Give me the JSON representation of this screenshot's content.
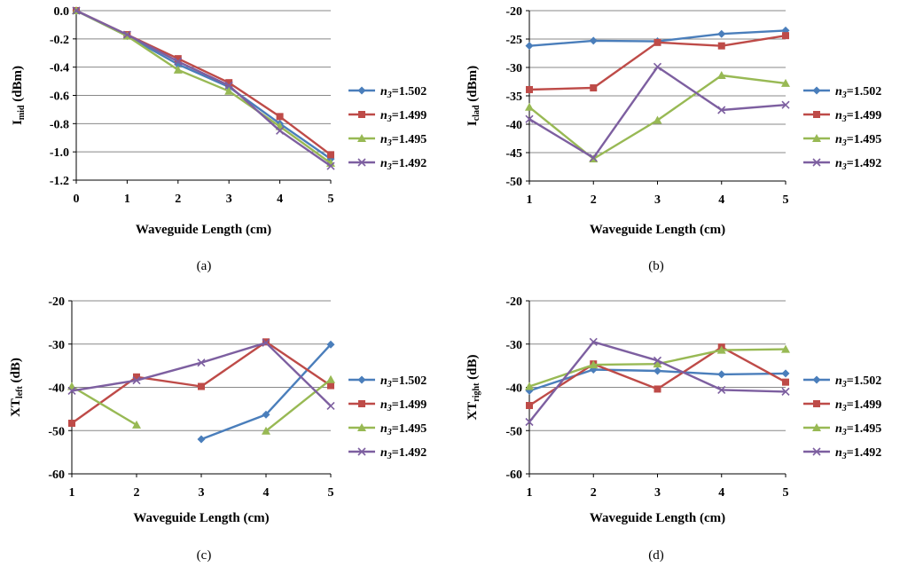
{
  "colors": {
    "n1_502": "#4a7ebb",
    "n1_499": "#be4b48",
    "n1_495": "#98b954",
    "n1_492": "#7d5fa0",
    "grid": "#888888",
    "axis": "#000000"
  },
  "legend": {
    "prefix": "n",
    "sub": "3",
    "entries": [
      {
        "value": "=1.502",
        "marker": "diamond",
        "color": "#4a7ebb"
      },
      {
        "value": "=1.499",
        "marker": "square",
        "color": "#be4b48"
      },
      {
        "value": "=1.495",
        "marker": "triangle",
        "color": "#98b954"
      },
      {
        "value": "=1.492",
        "marker": "x",
        "color": "#7d5fa0"
      }
    ]
  },
  "chart_data": [
    {
      "type": "line",
      "caption": "(a)",
      "xlabel": "Waveguide Length (cm)",
      "ylabel_main": "I",
      "ylabel_sub": "mid",
      "ylabel_tail": " (dBm)",
      "x": [
        0,
        1,
        2,
        3,
        4,
        5
      ],
      "xlim": [
        0,
        5
      ],
      "ylim": [
        -1.2,
        0.0
      ],
      "yticks": [
        0.0,
        -0.2,
        -0.4,
        -0.6,
        -0.8,
        -1.0,
        -1.2
      ],
      "ytick_labels": [
        "0.0",
        "-0.2",
        "-0.4",
        "-0.6",
        "-0.8",
        "-1.0",
        "-1.2"
      ],
      "grid": true,
      "series": [
        {
          "values": [
            0.0,
            -0.18,
            -0.38,
            -0.54,
            -0.8,
            -1.05
          ]
        },
        {
          "values": [
            0.0,
            -0.17,
            -0.34,
            -0.51,
            -0.75,
            -1.02
          ]
        },
        {
          "values": [
            0.0,
            -0.18,
            -0.42,
            -0.57,
            -0.82,
            -1.08
          ]
        },
        {
          "values": [
            0.0,
            -0.17,
            -0.36,
            -0.53,
            -0.85,
            -1.1
          ]
        }
      ]
    },
    {
      "type": "line",
      "caption": "(b)",
      "xlabel": "Waveguide Length (cm)",
      "ylabel_main": "I",
      "ylabel_sub": "clad",
      "ylabel_tail": " (dBm)",
      "x": [
        1,
        2,
        3,
        4,
        5
      ],
      "xlim": [
        1,
        5
      ],
      "ylim": [
        -50,
        -20
      ],
      "yticks": [
        -20,
        -25,
        -30,
        -35,
        -40,
        -45,
        -50
      ],
      "ytick_labels": [
        "-20",
        "-25",
        "-30",
        "-35",
        "-40",
        "-45",
        "-50"
      ],
      "grid": true,
      "series": [
        {
          "values": [
            -26.2,
            -25.3,
            -25.4,
            -24.1,
            -23.5
          ]
        },
        {
          "values": [
            -33.9,
            -33.6,
            -25.6,
            -26.2,
            -24.4
          ]
        },
        {
          "values": [
            -37.0,
            -46.1,
            -39.3,
            -31.4,
            -32.8
          ]
        },
        {
          "values": [
            -39.1,
            -45.9,
            -29.9,
            -37.5,
            -36.6
          ]
        }
      ]
    },
    {
      "type": "line",
      "caption": "(c)",
      "xlabel": "Waveguide Length (cm)",
      "ylabel_main": "XT",
      "ylabel_sub": "left",
      "ylabel_tail": " (dB)",
      "x": [
        1,
        2,
        3,
        4,
        5
      ],
      "xlim": [
        1,
        5
      ],
      "ylim": [
        -60,
        -20
      ],
      "yticks": [
        -20,
        -30,
        -40,
        -50,
        -60
      ],
      "ytick_labels": [
        "-20",
        "-30",
        "-40",
        "-50",
        "-60"
      ],
      "grid": true,
      "series": [
        {
          "values": [
            null,
            null,
            -52.0,
            -46.3,
            -30.1
          ]
        },
        {
          "values": [
            -48.3,
            -37.6,
            -39.8,
            -29.5,
            -39.6
          ]
        },
        {
          "values": [
            -39.8,
            -48.7,
            null,
            -50.1,
            -38.2
          ]
        },
        {
          "values": [
            -40.8,
            -38.4,
            -34.3,
            -29.7,
            -44.3
          ]
        }
      ]
    },
    {
      "type": "line",
      "caption": "(d)",
      "xlabel": "Waveguide Length (cm)",
      "ylabel_main": "XT",
      "ylabel_sub": "right",
      "ylabel_tail": " (dB)",
      "x": [
        1,
        2,
        3,
        4,
        5
      ],
      "xlim": [
        1,
        5
      ],
      "ylim": [
        -60,
        -20
      ],
      "yticks": [
        -20,
        -30,
        -40,
        -50,
        -60
      ],
      "ytick_labels": [
        "-20",
        "-30",
        "-40",
        "-50",
        "-60"
      ],
      "grid": true,
      "series": [
        {
          "values": [
            -40.8,
            -35.9,
            -36.2,
            -37.0,
            -36.8
          ]
        },
        {
          "values": [
            -44.2,
            -34.6,
            -40.4,
            -30.7,
            -38.8
          ]
        },
        {
          "values": [
            -39.8,
            -34.8,
            -34.6,
            -31.4,
            -31.2
          ]
        },
        {
          "values": [
            -48.0,
            -29.5,
            -33.8,
            -40.6,
            -41.0
          ]
        }
      ]
    }
  ]
}
